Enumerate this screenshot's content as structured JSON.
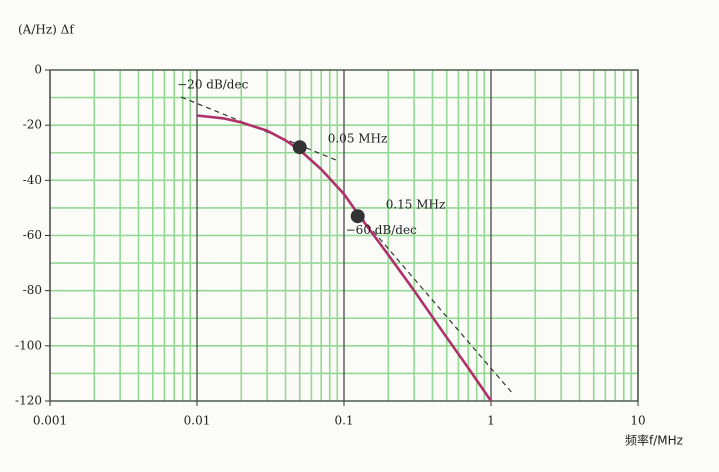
{
  "chart_data": {
    "type": "line",
    "log_x": true,
    "y_label": "(A/Hz) Δf",
    "x_label": "频率f/MHz",
    "x": [
      0.01,
      0.015,
      0.02,
      0.03,
      0.04,
      0.05,
      0.07,
      0.1,
      0.12,
      0.15,
      0.2,
      0.3,
      0.5,
      0.7,
      1.0
    ],
    "values": [
      -16.5,
      -17.5,
      -19,
      -22,
      -25.5,
      -29,
      -36,
      -45,
      -51,
      -58,
      -67,
      -80,
      -97,
      -108,
      -120
    ],
    "color": "#b0306a",
    "asymptotes": [
      {
        "label": "−20 dB/dec",
        "x": [
          0.0078,
          0.088
        ],
        "values": [
          -9.8,
          -32.6
        ]
      },
      {
        "label": "−60 dB/dec",
        "x": [
          0.12,
          1.43
        ],
        "values": [
          -51,
          -117.8
        ]
      }
    ],
    "points": [
      {
        "label": "0.05 MHz",
        "x": 0.05,
        "y": -28
      },
      {
        "label": "0.15 MHz",
        "x": 0.124,
        "y": -53
      }
    ],
    "xlim": [
      0.001,
      10
    ],
    "ylim": [
      -120,
      0
    ],
    "xticks": [
      0.001,
      0.01,
      0.1,
      1,
      10
    ],
    "yticks": [
      -120,
      -100,
      -80,
      -60,
      -40,
      -20,
      0
    ],
    "xminorticks": [
      0.002,
      0.003,
      0.004,
      0.005,
      0.006,
      0.007,
      0.008,
      0.009,
      0.02,
      0.03,
      0.04,
      0.05,
      0.06,
      0.07,
      0.08,
      0.09,
      0.2,
      0.3,
      0.4,
      0.5,
      0.6,
      0.7,
      0.8,
      0.9,
      2,
      3,
      4,
      5,
      6,
      7,
      8,
      9
    ],
    "yminorticks": [
      -110,
      -90,
      -70,
      -50,
      -30,
      -10
    ],
    "grid": true,
    "grid_color": "#93d893"
  }
}
